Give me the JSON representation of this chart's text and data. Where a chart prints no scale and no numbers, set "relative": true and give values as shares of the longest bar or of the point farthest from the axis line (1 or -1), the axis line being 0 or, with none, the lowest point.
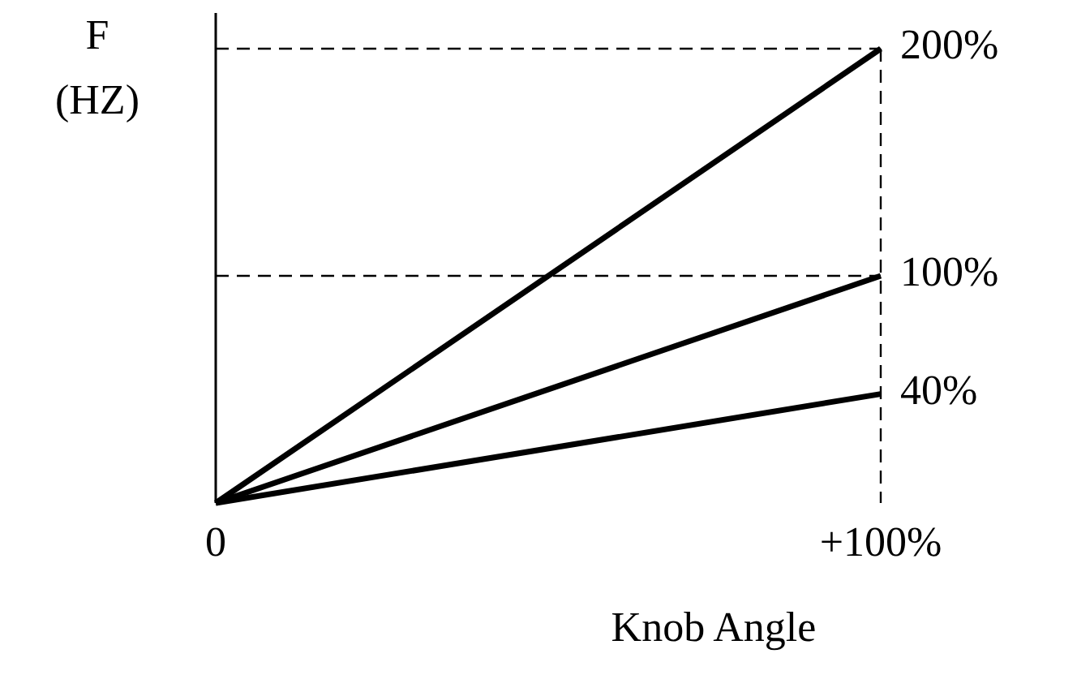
{
  "chart_data": {
    "type": "line",
    "relative": true,
    "xlabel": "Knob Angle",
    "ylabel": "F (HZ)",
    "x": [
      0,
      1
    ],
    "xlim": [
      0,
      1
    ],
    "xticks": [
      {
        "value": 0,
        "label": "0"
      },
      {
        "value": 1,
        "label": "+100%"
      }
    ],
    "series": [
      {
        "name": "200%",
        "color": "#000000",
        "values": [
          0,
          1
        ]
      },
      {
        "name": "100%",
        "color": "#000000",
        "values": [
          0,
          0.5
        ]
      },
      {
        "name": "40%",
        "color": "#000000",
        "values": [
          0,
          0.24
        ]
      }
    ],
    "ref_lines": [
      {
        "axis": "y",
        "value": 1,
        "line_style": "dashed",
        "color": "#000000"
      },
      {
        "axis": "y",
        "value": 0.5,
        "line_style": "dashed",
        "color": "#000000"
      },
      {
        "axis": "x",
        "value": 1,
        "line_style": "dashed",
        "color": "#000000"
      }
    ],
    "legend": false,
    "marker": "none",
    "line_style": "solid"
  }
}
